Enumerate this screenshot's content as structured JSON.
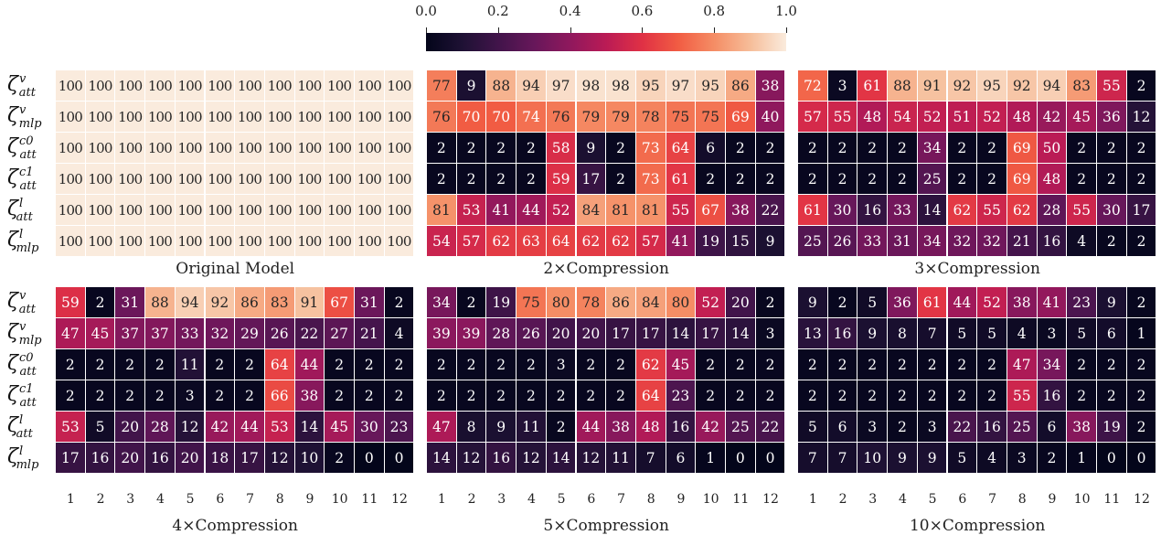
{
  "chart_data": {
    "type": "heatmap",
    "colorbar": {
      "min": 0.0,
      "max": 1.0,
      "ticks": [
        "0.0",
        "0.2",
        "0.4",
        "0.6",
        "0.8",
        "1.0"
      ],
      "colormap": "rocket"
    },
    "row_labels": [
      {
        "sym": "ζ",
        "sup": "v",
        "sub": "att"
      },
      {
        "sym": "ζ",
        "sup": "v",
        "sub": "mlp"
      },
      {
        "sym": "ζ",
        "sup": "c0",
        "sub": "att"
      },
      {
        "sym": "ζ",
        "sup": "c1",
        "sub": "att"
      },
      {
        "sym": "ζ",
        "sup": "l",
        "sub": "att"
      },
      {
        "sym": "ζ",
        "sup": "l",
        "sub": "mlp"
      }
    ],
    "columns": [
      "1",
      "2",
      "3",
      "4",
      "5",
      "6",
      "7",
      "8",
      "9",
      "10",
      "11",
      "12"
    ],
    "panels": [
      {
        "title": "Original Model",
        "values": [
          [
            100,
            100,
            100,
            100,
            100,
            100,
            100,
            100,
            100,
            100,
            100,
            100
          ],
          [
            100,
            100,
            100,
            100,
            100,
            100,
            100,
            100,
            100,
            100,
            100,
            100
          ],
          [
            100,
            100,
            100,
            100,
            100,
            100,
            100,
            100,
            100,
            100,
            100,
            100
          ],
          [
            100,
            100,
            100,
            100,
            100,
            100,
            100,
            100,
            100,
            100,
            100,
            100
          ],
          [
            100,
            100,
            100,
            100,
            100,
            100,
            100,
            100,
            100,
            100,
            100,
            100
          ],
          [
            100,
            100,
            100,
            100,
            100,
            100,
            100,
            100,
            100,
            100,
            100,
            100
          ]
        ]
      },
      {
        "title": "2×Compression",
        "values": [
          [
            77,
            9,
            88,
            94,
            97,
            98,
            98,
            95,
            97,
            95,
            86,
            38
          ],
          [
            76,
            70,
            70,
            74,
            76,
            79,
            79,
            78,
            75,
            75,
            69,
            40
          ],
          [
            2,
            2,
            2,
            2,
            58,
            9,
            2,
            73,
            64,
            6,
            2,
            2
          ],
          [
            2,
            2,
            2,
            2,
            59,
            17,
            2,
            73,
            61,
            2,
            2,
            2
          ],
          [
            81,
            53,
            41,
            44,
            52,
            84,
            81,
            81,
            55,
            67,
            38,
            22
          ],
          [
            54,
            57,
            62,
            63,
            64,
            62,
            62,
            57,
            41,
            19,
            15,
            9
          ]
        ]
      },
      {
        "title": "3×Compression",
        "values": [
          [
            72,
            3,
            61,
            88,
            91,
            92,
            95,
            92,
            94,
            83,
            55,
            2
          ],
          [
            57,
            55,
            48,
            54,
            52,
            51,
            52,
            48,
            42,
            45,
            36,
            12
          ],
          [
            2,
            2,
            2,
            2,
            34,
            2,
            2,
            69,
            50,
            2,
            2,
            2
          ],
          [
            2,
            2,
            2,
            2,
            25,
            2,
            2,
            69,
            48,
            2,
            2,
            2
          ],
          [
            61,
            30,
            16,
            33,
            14,
            62,
            55,
            62,
            28,
            55,
            30,
            17
          ],
          [
            25,
            26,
            33,
            31,
            34,
            32,
            32,
            21,
            16,
            4,
            2,
            2
          ]
        ]
      },
      {
        "title": "4×Compression",
        "values": [
          [
            59,
            2,
            31,
            88,
            94,
            92,
            86,
            83,
            91,
            67,
            31,
            2
          ],
          [
            47,
            45,
            37,
            37,
            33,
            32,
            29,
            26,
            22,
            27,
            21,
            4
          ],
          [
            2,
            2,
            2,
            2,
            11,
            2,
            2,
            64,
            44,
            2,
            2,
            2
          ],
          [
            2,
            2,
            2,
            2,
            3,
            2,
            2,
            66,
            38,
            2,
            2,
            2
          ],
          [
            53,
            5,
            20,
            28,
            12,
            42,
            44,
            53,
            14,
            45,
            30,
            23
          ],
          [
            17,
            16,
            20,
            16,
            20,
            18,
            17,
            12,
            10,
            2,
            0,
            0
          ]
        ]
      },
      {
        "title": "5×Compression",
        "values": [
          [
            34,
            2,
            19,
            75,
            80,
            78,
            86,
            84,
            80,
            52,
            20,
            2
          ],
          [
            39,
            39,
            28,
            26,
            20,
            20,
            17,
            17,
            14,
            17,
            14,
            3
          ],
          [
            2,
            2,
            2,
            2,
            3,
            2,
            2,
            62,
            45,
            2,
            2,
            2
          ],
          [
            2,
            2,
            2,
            2,
            2,
            2,
            2,
            64,
            23,
            2,
            2,
            2
          ],
          [
            47,
            8,
            9,
            11,
            2,
            44,
            38,
            48,
            16,
            42,
            25,
            22
          ],
          [
            14,
            12,
            16,
            12,
            14,
            12,
            11,
            7,
            6,
            1,
            0,
            0
          ]
        ]
      },
      {
        "title": "10×Compression",
        "values": [
          [
            9,
            2,
            5,
            36,
            61,
            44,
            52,
            38,
            41,
            23,
            9,
            2
          ],
          [
            13,
            16,
            9,
            8,
            7,
            5,
            5,
            4,
            3,
            5,
            6,
            1
          ],
          [
            2,
            2,
            2,
            2,
            2,
            2,
            2,
            47,
            34,
            2,
            2,
            2
          ],
          [
            2,
            2,
            2,
            2,
            2,
            2,
            2,
            55,
            16,
            2,
            2,
            2
          ],
          [
            5,
            6,
            3,
            2,
            3,
            22,
            16,
            25,
            6,
            38,
            19,
            2
          ],
          [
            7,
            7,
            10,
            9,
            9,
            5,
            4,
            3,
            2,
            1,
            0,
            0
          ]
        ]
      }
    ]
  }
}
